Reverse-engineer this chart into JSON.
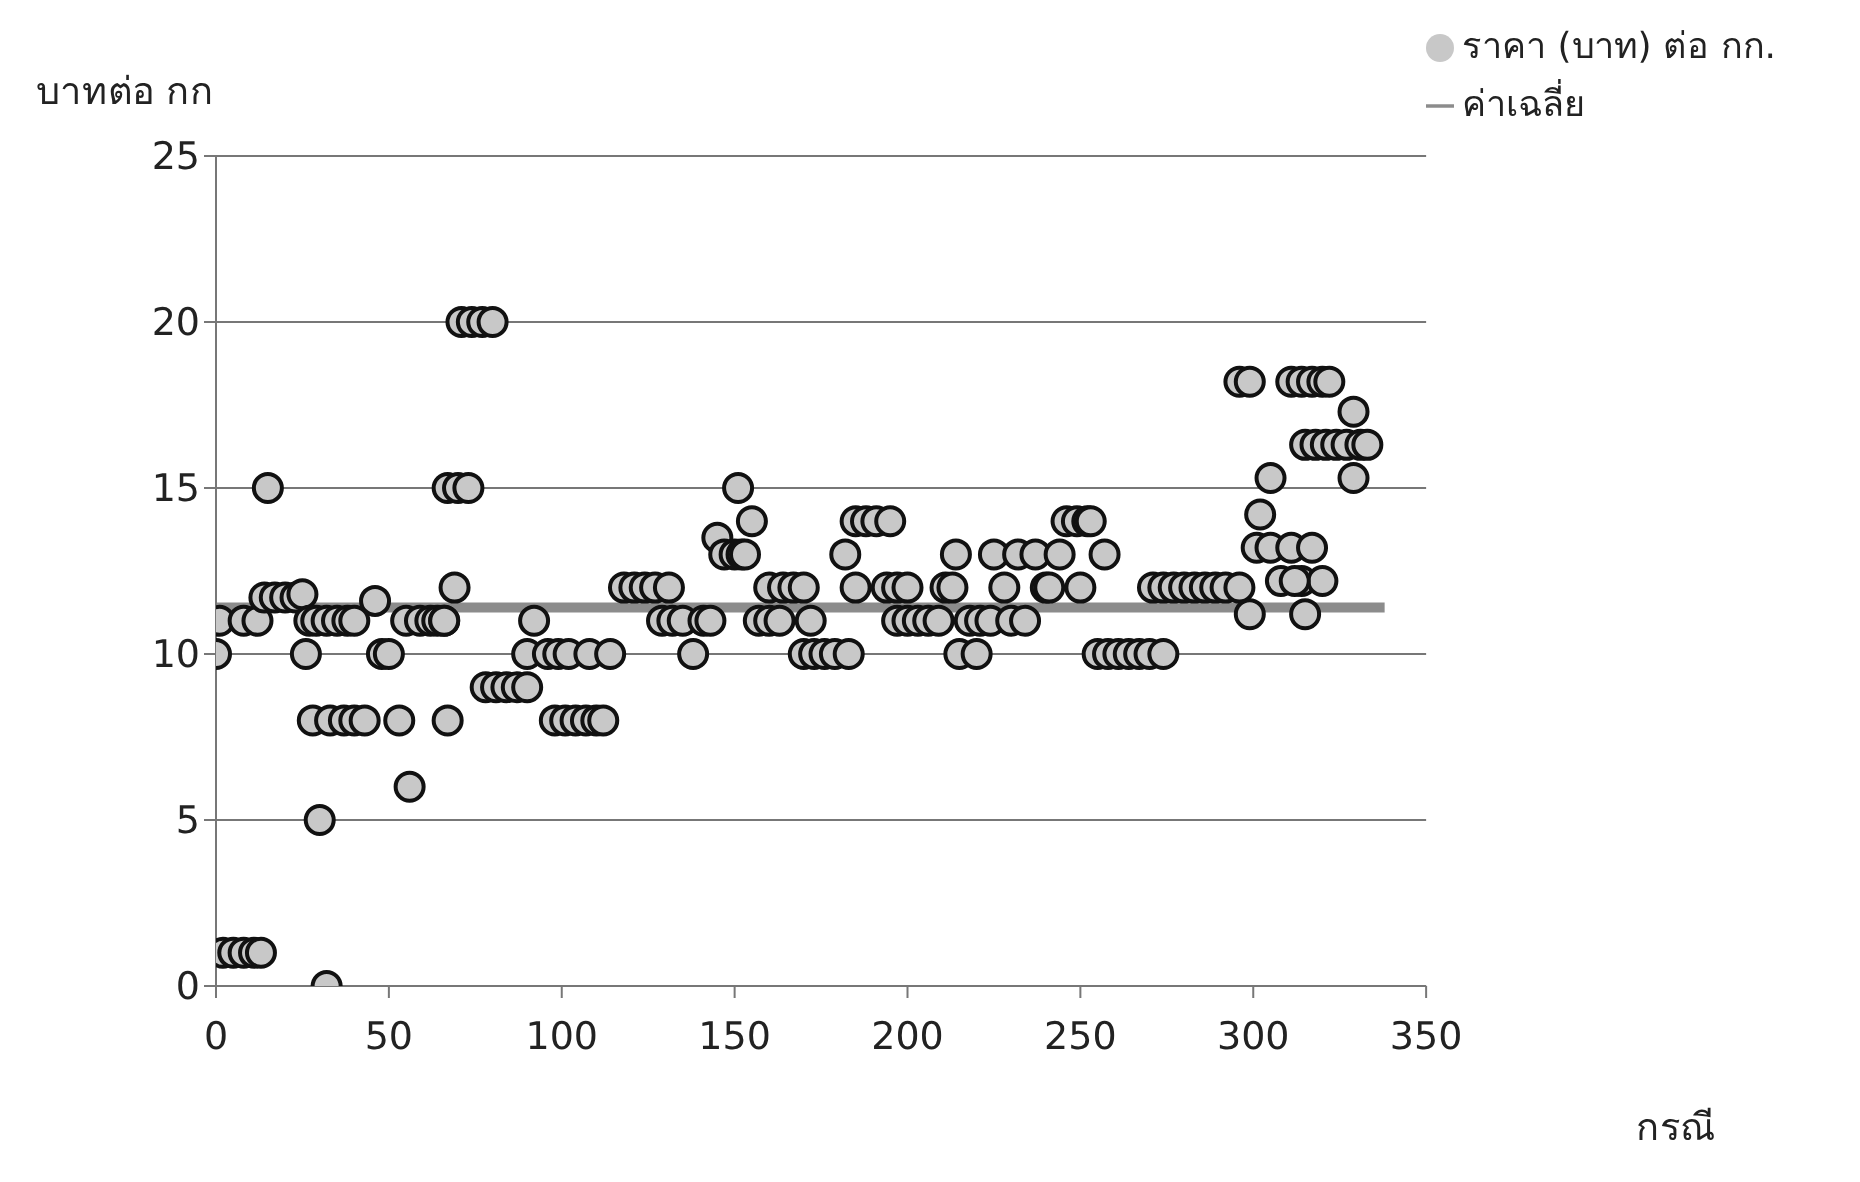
{
  "chart_data": {
    "type": "scatter",
    "xlabel": "กรณี",
    "ylabel": "บาทต่อ กก",
    "xlim": [
      0,
      350
    ],
    "xticks": [
      0,
      50,
      100,
      150,
      200,
      250,
      300,
      350
    ],
    "ylim": [
      0,
      25
    ],
    "yticks": [
      0,
      5,
      10,
      15,
      20,
      25
    ],
    "grid": "y",
    "legend": "top right",
    "marker": "circle",
    "series": [
      {
        "name": "ราคา (บาท) ต่อ กก.",
        "color": "#c8c8c8",
        "x": [
          0,
          1,
          2,
          5,
          8,
          11,
          13,
          8,
          12,
          15,
          14,
          17,
          20,
          23,
          25,
          26,
          28,
          27,
          30,
          32,
          33,
          29,
          32,
          35,
          38,
          40,
          37,
          40,
          43,
          46,
          48,
          50,
          53,
          55,
          56,
          59,
          62,
          64,
          66,
          67,
          66,
          69,
          67,
          70,
          73,
          71,
          74,
          77,
          80,
          78,
          81,
          84,
          87,
          90,
          92,
          90,
          96,
          99,
          102,
          98,
          101,
          104,
          107,
          110,
          112,
          108,
          114,
          118,
          121,
          124,
          127,
          131,
          129,
          132,
          135,
          138,
          141,
          143,
          145,
          147,
          150,
          152,
          153,
          151,
          155,
          157,
          160,
          163,
          160,
          164,
          167,
          170,
          172,
          170,
          173,
          176,
          179,
          183,
          182,
          185,
          188,
          191,
          195,
          185,
          194,
          197,
          200,
          197,
          200,
          203,
          206,
          209,
          211,
          213,
          214,
          215,
          220,
          218,
          221,
          225,
          224,
          228,
          230,
          232,
          234,
          237,
          240,
          241,
          244,
          250,
          246,
          249,
          252,
          253,
          257,
          255,
          258,
          261,
          264,
          267,
          270,
          274,
          271,
          274,
          277,
          280,
          283,
          286,
          289,
          292,
          296,
          299,
          296,
          299,
          301,
          302,
          305,
          305,
          308,
          311,
          314,
          317,
          320,
          312,
          315,
          311,
          314,
          317,
          320,
          322,
          315,
          318,
          321,
          324,
          327,
          329,
          331,
          329,
          333
        ],
        "values": [
          10,
          11,
          1,
          1,
          1,
          1,
          1,
          11,
          11,
          15,
          11.7,
          11.7,
          11.7,
          11.7,
          11.8,
          10,
          8,
          11,
          5,
          0,
          8,
          11,
          11,
          11,
          11,
          11,
          8,
          8,
          8,
          11.6,
          10,
          10,
          8,
          11,
          6,
          11,
          11,
          11,
          11,
          8,
          11,
          12,
          15,
          15,
          15,
          20,
          20,
          20,
          20,
          9,
          9,
          9,
          9,
          9,
          11,
          10,
          10,
          10,
          10,
          8,
          8,
          8,
          8,
          8,
          8,
          10,
          10,
          12,
          12,
          12,
          12,
          12,
          11,
          11,
          11,
          10,
          11,
          11,
          13.5,
          13,
          13,
          13,
          13,
          15,
          14,
          11,
          11,
          11,
          12,
          12,
          12,
          12,
          11,
          10,
          10,
          10,
          10,
          10,
          13,
          14,
          14,
          14,
          14,
          12,
          12,
          12,
          12,
          11,
          11,
          11,
          11,
          11,
          12,
          12,
          13,
          10,
          10,
          11,
          11,
          13,
          11,
          12,
          11,
          13,
          11,
          13,
          12,
          12,
          13,
          12,
          14,
          14,
          14,
          14,
          13,
          10,
          10,
          10,
          10,
          10,
          10,
          10,
          12,
          12,
          12,
          12,
          12,
          12,
          12,
          12,
          18.2,
          18.2,
          12,
          11.2,
          13.2,
          14.2,
          13.2,
          15.3,
          12.2,
          13.2,
          12.2,
          13.2,
          12.2,
          12.2,
          11.2,
          18.2,
          18.2,
          18.2,
          18.2,
          18.2,
          16.3,
          16.3,
          16.3,
          16.3,
          16.3,
          17.3,
          16.3,
          15.3,
          16.3
        ]
      },
      {
        "name": "ค่าเฉลี่ย",
        "type": "line",
        "color": "#8c8c8c",
        "marker": "none",
        "x": [
          0,
          338
        ],
        "values": [
          11.4,
          11.4
        ]
      }
    ]
  }
}
